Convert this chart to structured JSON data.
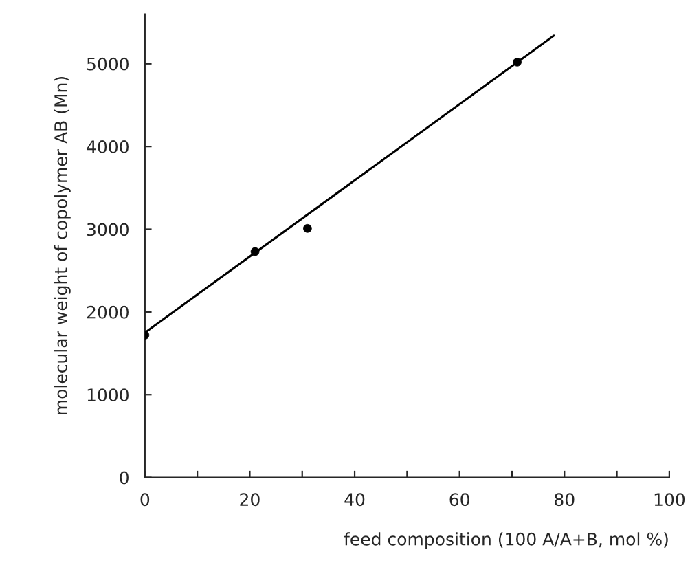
{
  "chart_data": {
    "type": "scatter",
    "xlabel": "feed composition (100 A/A+B, mol %)",
    "ylabel": "molecular weight of copolymer AB (Mn)",
    "series": [
      {
        "color": "#000000",
        "x": [
          0,
          21,
          31,
          71
        ],
        "values": [
          1720,
          2730,
          3010,
          5020
        ],
        "marker": "circle"
      },
      {
        "type": "line",
        "color": "#000000",
        "x": [
          0,
          78
        ],
        "values": [
          1750,
          5340
        ],
        "marker": "none",
        "line_style": "solid"
      }
    ],
    "xlim": [
      0,
      100
    ],
    "ylim": [
      0,
      5600
    ],
    "xticks": [
      0,
      {
        "value": 10,
        "label": null
      },
      20,
      {
        "value": 30,
        "label": null
      },
      40,
      {
        "value": 50,
        "label": null
      },
      60,
      {
        "value": 70,
        "label": null
      },
      80,
      {
        "value": 90,
        "label": null
      },
      100
    ],
    "yticks": [
      0,
      1000,
      2000,
      3000,
      4000,
      5000
    ],
    "grid": false,
    "legend": false
  }
}
